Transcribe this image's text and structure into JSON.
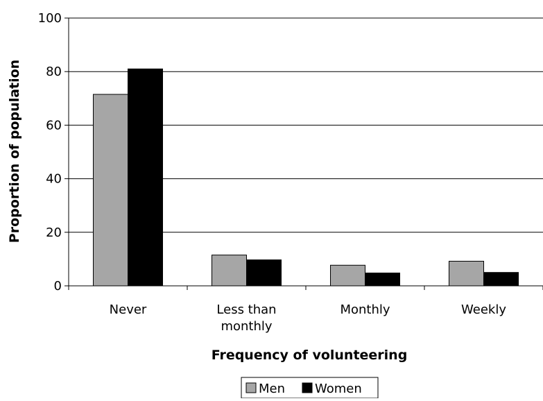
{
  "chart_data": {
    "type": "bar",
    "categories": [
      "Never",
      "Less than monthly",
      "Monthly",
      "Weekly"
    ],
    "category_lines": [
      [
        "Never"
      ],
      [
        "Less than",
        "monthly"
      ],
      [
        "Monthly"
      ],
      [
        "Weekly"
      ]
    ],
    "series": [
      {
        "name": "Men",
        "values": [
          71.5,
          11.5,
          7.7,
          9.2
        ],
        "color": "#a6a6a6"
      },
      {
        "name": "Women",
        "values": [
          81,
          9.7,
          4.8,
          5
        ],
        "color": "#000000"
      }
    ],
    "xlabel": "Frequency of volunteering",
    "ylabel": "Proportion of population",
    "ylim": [
      0,
      100
    ],
    "yticks": [
      0,
      20,
      40,
      60,
      80,
      100
    ],
    "grid": true,
    "legend": "bottom"
  }
}
